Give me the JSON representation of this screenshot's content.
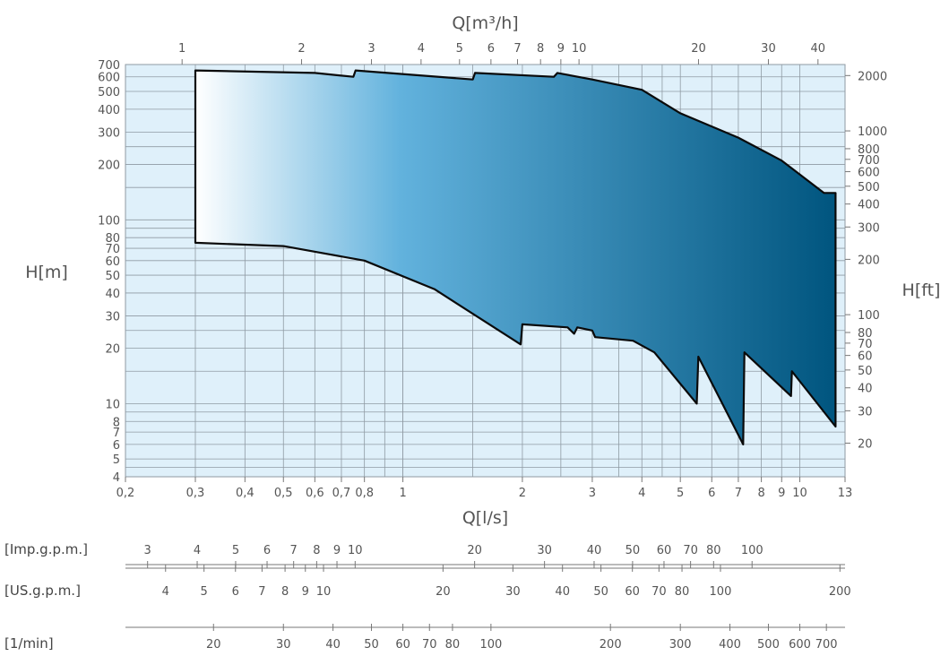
{
  "chart_data": {
    "type": "area",
    "title": "",
    "x": {
      "label": "Q[l/s]",
      "scale": "log",
      "range": [
        0.2,
        13
      ],
      "ticks": [
        0.2,
        0.3,
        0.4,
        0.5,
        0.6,
        0.7,
        0.8,
        1,
        2,
        3,
        4,
        5,
        6,
        7,
        8,
        9,
        10,
        13
      ],
      "tick_labels": [
        "0,2",
        "0,3",
        "0,4",
        "0,5",
        "0,6",
        "0,7",
        "0,8",
        "1",
        "2",
        "3",
        "4",
        "5",
        "6",
        "7",
        "8",
        "9",
        "10",
        "13"
      ]
    },
    "x_top": {
      "label": "Q[m³/h]",
      "ticks": [
        1,
        2,
        3,
        4,
        5,
        6,
        7,
        8,
        9,
        10,
        20,
        30,
        40
      ],
      "tick_labels": [
        "1",
        "2",
        "3",
        "4",
        "5",
        "6",
        "7",
        "8",
        "9",
        "10",
        "20",
        "30",
        "40"
      ]
    },
    "y": {
      "label": "H[m]",
      "scale": "log",
      "range": [
        4,
        700
      ],
      "ticks": [
        4,
        5,
        6,
        7,
        8,
        10,
        20,
        30,
        40,
        50,
        60,
        70,
        80,
        100,
        200,
        300,
        400,
        500,
        600,
        700
      ],
      "tick_labels": [
        "4",
        "5",
        "6",
        "7",
        "8",
        "10",
        "20",
        "30",
        "40",
        "50",
        "60",
        "70",
        "80",
        "100",
        "200",
        "300",
        "400",
        "500",
        "600",
        "700"
      ]
    },
    "y_right": {
      "label": "H[ft]",
      "ticks": [
        20,
        30,
        40,
        50,
        60,
        70,
        80,
        100,
        200,
        300,
        400,
        500,
        600,
        700,
        800,
        1000,
        2000
      ],
      "tick_labels": [
        "20",
        "30",
        "40",
        "50",
        "60",
        "70",
        "80",
        "100",
        "200",
        "300",
        "400",
        "500",
        "600",
        "700",
        "800",
        "1000",
        "2000"
      ]
    },
    "extra_scales": [
      {
        "label": "[Imp.g.p.m.]",
        "tick_labels": [
          "3",
          "4",
          "5",
          "6",
          "7",
          "8",
          "9",
          "10",
          "20",
          "30",
          "40",
          "50",
          "60",
          "70",
          "80",
          "100"
        ]
      },
      {
        "label": "[US.g.p.m.]",
        "tick_labels": [
          "4",
          "5",
          "6",
          "7",
          "8",
          "9",
          "10",
          "20",
          "30",
          "40",
          "50",
          "60",
          "70",
          "80",
          "100",
          "200"
        ]
      },
      {
        "label": "[1/min]",
        "tick_labels": [
          "20",
          "30",
          "40",
          "50",
          "60",
          "70",
          "80",
          "100",
          "200",
          "300",
          "400",
          "500",
          "600",
          "700"
        ]
      }
    ],
    "region": {
      "upper_boundary": [
        [
          0.3,
          650
        ],
        [
          0.6,
          630
        ],
        [
          0.75,
          600
        ],
        [
          0.76,
          650
        ],
        [
          1.5,
          580
        ],
        [
          1.52,
          630
        ],
        [
          2.4,
          600
        ],
        [
          2.45,
          630
        ],
        [
          3.0,
          580
        ],
        [
          4.0,
          510
        ],
        [
          5.0,
          380
        ],
        [
          7.0,
          280
        ],
        [
          9.0,
          210
        ],
        [
          11.5,
          140
        ],
        [
          12.3,
          140
        ]
      ],
      "lower_boundary": [
        [
          0.3,
          75
        ],
        [
          0.5,
          72
        ],
        [
          0.8,
          60
        ],
        [
          1.2,
          42
        ],
        [
          1.98,
          21
        ],
        [
          2.0,
          27
        ],
        [
          2.6,
          26
        ],
        [
          2.7,
          24
        ],
        [
          2.75,
          26
        ],
        [
          3.0,
          25
        ],
        [
          3.05,
          23
        ],
        [
          3.8,
          22
        ],
        [
          4.3,
          19
        ],
        [
          5.5,
          10
        ],
        [
          5.55,
          18
        ],
        [
          7.2,
          6
        ],
        [
          7.25,
          19
        ],
        [
          9.5,
          11
        ],
        [
          9.55,
          15
        ],
        [
          12.3,
          7.5
        ]
      ],
      "gradient": [
        "#ffffff",
        "#62b2dd",
        "#00557f"
      ]
    },
    "background_color": "#dff0fa",
    "grid": true
  }
}
